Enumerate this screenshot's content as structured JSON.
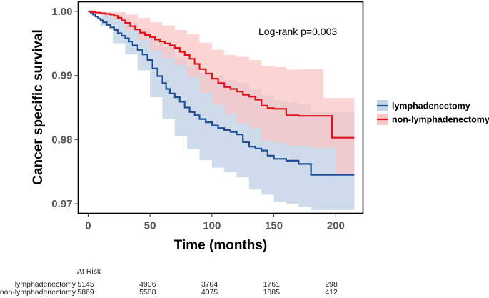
{
  "chart_data": {
    "type": "line",
    "subtype": "kaplan-meier survival curve with 95% confidence bands",
    "xlabel": "Time (months)",
    "ylabel": "Cancer specific survival",
    "xlim": [
      -8,
      222
    ],
    "ylim": [
      0.9685,
      1.0015
    ],
    "xticks": [
      0,
      50,
      100,
      150,
      200
    ],
    "xtick_labels": [
      "0",
      "50",
      "100",
      "150",
      "200"
    ],
    "yticks": [
      0.97,
      0.98,
      0.99,
      1.0
    ],
    "ytick_labels": [
      "0.97",
      "0.98",
      "0.99",
      "1.00"
    ],
    "annotation": "Log-rank p=0.003",
    "legend_position": "right",
    "series": [
      {
        "name": "lymphadenectomy",
        "color": "#1f4e96",
        "band_color": "#c4d5e6",
        "points": [
          [
            0,
            1.0
          ],
          [
            2,
            0.9998
          ],
          [
            4,
            0.9995
          ],
          [
            6,
            0.9992
          ],
          [
            8,
            0.9989
          ],
          [
            10,
            0.9986
          ],
          [
            12,
            0.9983
          ],
          [
            15,
            0.9979
          ],
          [
            18,
            0.9975
          ],
          [
            21,
            0.9971
          ],
          [
            24,
            0.9966
          ],
          [
            27,
            0.9962
          ],
          [
            30,
            0.9958
          ],
          [
            33,
            0.9953
          ],
          [
            36,
            0.9947
          ],
          [
            40,
            0.994
          ],
          [
            44,
            0.9933
          ],
          [
            48,
            0.9924
          ],
          [
            52,
            0.9911
          ],
          [
            56,
            0.9899
          ],
          [
            60,
            0.9888
          ],
          [
            63,
            0.9879
          ],
          [
            66,
            0.9872
          ],
          [
            70,
            0.9866
          ],
          [
            74,
            0.9859
          ],
          [
            78,
            0.985
          ],
          [
            82,
            0.9843
          ],
          [
            86,
            0.9838
          ],
          [
            90,
            0.9832
          ],
          [
            95,
            0.9827
          ],
          [
            100,
            0.9822
          ],
          [
            105,
            0.9818
          ],
          [
            110,
            0.9815
          ],
          [
            115,
            0.9812
          ],
          [
            120,
            0.9808
          ],
          [
            125,
            0.9796
          ],
          [
            130,
            0.9789
          ],
          [
            135,
            0.9786
          ],
          [
            140,
            0.9783
          ],
          [
            145,
            0.9775
          ],
          [
            150,
            0.977
          ],
          [
            155,
            0.977
          ],
          [
            160,
            0.9767
          ],
          [
            170,
            0.9762
          ],
          [
            180,
            0.9745
          ],
          [
            200,
            0.9745
          ],
          [
            215,
            0.9745
          ]
        ],
        "ci_upper": [
          [
            0,
            1.0
          ],
          [
            10,
            0.9998
          ],
          [
            20,
            0.9991
          ],
          [
            30,
            0.9982
          ],
          [
            40,
            0.9972
          ],
          [
            50,
            0.9959
          ],
          [
            60,
            0.9944
          ],
          [
            70,
            0.9927
          ],
          [
            80,
            0.9914
          ],
          [
            90,
            0.9904
          ],
          [
            100,
            0.9898
          ],
          [
            110,
            0.9893
          ],
          [
            120,
            0.9889
          ],
          [
            130,
            0.9878
          ],
          [
            140,
            0.9869
          ],
          [
            150,
            0.9861
          ],
          [
            160,
            0.9858
          ],
          [
            170,
            0.9855
          ],
          [
            180,
            0.9843
          ],
          [
            200,
            0.9843
          ],
          [
            215,
            0.9843
          ]
        ],
        "ci_lower": [
          [
            0,
            1.0
          ],
          [
            10,
            0.9977
          ],
          [
            20,
            0.995
          ],
          [
            30,
            0.9933
          ],
          [
            40,
            0.9908
          ],
          [
            50,
            0.9866
          ],
          [
            60,
            0.9832
          ],
          [
            70,
            0.9805
          ],
          [
            80,
            0.9785
          ],
          [
            90,
            0.9768
          ],
          [
            100,
            0.9756
          ],
          [
            110,
            0.9749
          ],
          [
            120,
            0.9741
          ],
          [
            130,
            0.9722
          ],
          [
            140,
            0.9714
          ],
          [
            150,
            0.9703
          ],
          [
            160,
            0.97
          ],
          [
            170,
            0.9695
          ],
          [
            180,
            0.969
          ],
          [
            200,
            0.969
          ],
          [
            215,
            0.969
          ]
        ]
      },
      {
        "name": "non-lymphadenectomy",
        "color": "#e3131b",
        "band_color": "#f9c5c6",
        "points": [
          [
            0,
            1.0
          ],
          [
            3,
            0.9999
          ],
          [
            6,
            0.9998
          ],
          [
            10,
            0.9997
          ],
          [
            14,
            0.9996
          ],
          [
            18,
            0.9995
          ],
          [
            21,
            0.9993
          ],
          [
            24,
            0.999
          ],
          [
            27,
            0.9986
          ],
          [
            30,
            0.9982
          ],
          [
            34,
            0.9977
          ],
          [
            38,
            0.9972
          ],
          [
            42,
            0.9967
          ],
          [
            46,
            0.9963
          ],
          [
            50,
            0.996
          ],
          [
            54,
            0.9956
          ],
          [
            58,
            0.9953
          ],
          [
            62,
            0.995
          ],
          [
            66,
            0.9947
          ],
          [
            70,
            0.9943
          ],
          [
            74,
            0.9937
          ],
          [
            78,
            0.9932
          ],
          [
            82,
            0.9926
          ],
          [
            86,
            0.9918
          ],
          [
            90,
            0.991
          ],
          [
            95,
            0.9903
          ],
          [
            100,
            0.9895
          ],
          [
            105,
            0.9888
          ],
          [
            110,
            0.9882
          ],
          [
            115,
            0.9879
          ],
          [
            120,
            0.9875
          ],
          [
            125,
            0.987
          ],
          [
            130,
            0.9867
          ],
          [
            135,
            0.9862
          ],
          [
            140,
            0.9853
          ],
          [
            145,
            0.9849
          ],
          [
            150,
            0.9848
          ],
          [
            160,
            0.9838
          ],
          [
            170,
            0.9837
          ],
          [
            180,
            0.9837
          ],
          [
            190,
            0.9837
          ],
          [
            197,
            0.9803
          ],
          [
            215,
            0.9803
          ]
        ],
        "ci_upper": [
          [
            0,
            1.0
          ],
          [
            10,
            0.9999
          ],
          [
            20,
            0.9999
          ],
          [
            30,
            0.9995
          ],
          [
            40,
            0.999
          ],
          [
            50,
            0.9983
          ],
          [
            60,
            0.9978
          ],
          [
            70,
            0.9971
          ],
          [
            80,
            0.9964
          ],
          [
            90,
            0.9951
          ],
          [
            100,
            0.994
          ],
          [
            110,
            0.9932
          ],
          [
            120,
            0.9929
          ],
          [
            130,
            0.9924
          ],
          [
            140,
            0.9915
          ],
          [
            150,
            0.9913
          ],
          [
            160,
            0.9909
          ],
          [
            170,
            0.991
          ],
          [
            180,
            0.991
          ],
          [
            190,
            0.9865
          ],
          [
            200,
            0.9865
          ],
          [
            215,
            0.9865
          ]
        ],
        "ci_lower": [
          [
            0,
            1.0
          ],
          [
            10,
            0.9995
          ],
          [
            20,
            0.9987
          ],
          [
            30,
            0.997
          ],
          [
            40,
            0.9955
          ],
          [
            50,
            0.9938
          ],
          [
            60,
            0.9927
          ],
          [
            70,
            0.9916
          ],
          [
            80,
            0.9897
          ],
          [
            90,
            0.9873
          ],
          [
            100,
            0.9854
          ],
          [
            110,
            0.984
          ],
          [
            120,
            0.9825
          ],
          [
            130,
            0.9818
          ],
          [
            140,
            0.9798
          ],
          [
            150,
            0.9795
          ],
          [
            160,
            0.979
          ],
          [
            170,
            0.979
          ],
          [
            180,
            0.9787
          ],
          [
            190,
            0.9787
          ],
          [
            200,
            0.9745
          ],
          [
            215,
            0.9745
          ]
        ]
      }
    ],
    "risk_table": {
      "title": "At Risk",
      "times": [
        0,
        50,
        100,
        150,
        200
      ],
      "rows": [
        {
          "label": "lymphadenectomy",
          "counts": [
            "5145",
            "4906",
            "3704",
            "1761",
            "298"
          ]
        },
        {
          "label": "non-lymphadenectomy",
          "counts": [
            "5869",
            "5588",
            "4075",
            "1885",
            "412"
          ]
        }
      ]
    }
  }
}
